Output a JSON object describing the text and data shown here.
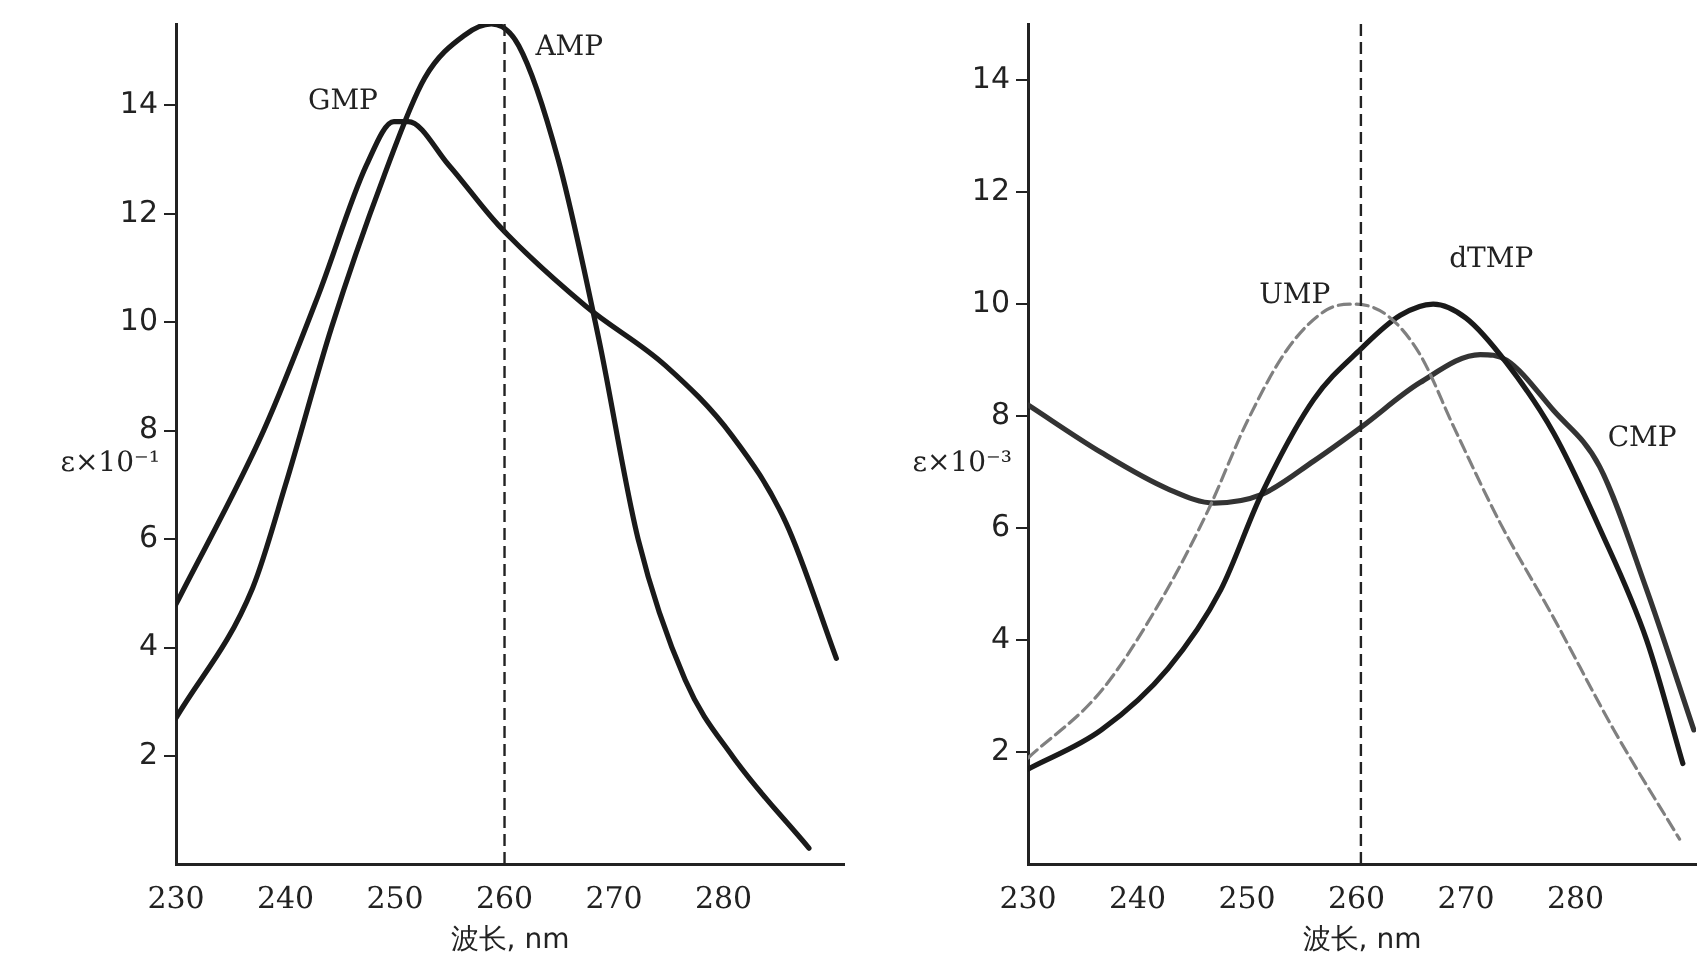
{
  "chart_data": [
    {
      "type": "line",
      "xlabel": "波长, nm",
      "ylabel": "ε×10⁻¹",
      "xlim": [
        230,
        291
      ],
      "xticks": [
        230,
        240,
        250,
        260,
        270,
        280
      ],
      "ylim": [
        0,
        15.5
      ],
      "yticks": [
        2,
        4,
        6,
        8,
        10,
        12,
        14
      ],
      "grid": false,
      "legend": false,
      "marker": "none",
      "ref_lines": [
        {
          "axis": "x",
          "value": 260,
          "line_style": "dashed"
        }
      ],
      "series": [
        {
          "name": "GMP",
          "color": "#1a1a1a",
          "x": [
            230,
            238,
            243,
            247.4,
            249.9,
            251.2,
            254.9,
            259.4,
            267.4,
            274.7,
            280.8,
            285.7,
            290.3
          ],
          "values": [
            4.8,
            8.0,
            10.5,
            12.9,
            13.7,
            13.7,
            12.9,
            11.8,
            10.3,
            9.2,
            7.9,
            6.3,
            3.8
          ]
        },
        {
          "name": "AMP",
          "color": "#1a1a1a",
          "x": [
            230,
            237,
            240,
            244.2,
            249,
            252.7,
            256.4,
            258.8,
            261.3,
            264.9,
            268.6,
            272.2,
            276.5,
            280.8,
            287.8
          ],
          "values": [
            2.7,
            5.1,
            7.0,
            9.9,
            12.7,
            14.5,
            15.3,
            15.5,
            15.1,
            13.0,
            9.7,
            6.0,
            3.4,
            2.0,
            0.3
          ]
        }
      ]
    },
    {
      "type": "line",
      "xlabel": "波长, nm",
      "ylabel": "ε×10⁻³",
      "xlim": [
        230,
        291
      ],
      "xticks": [
        230,
        240,
        250,
        260,
        270,
        280
      ],
      "ylim": [
        0,
        15
      ],
      "yticks": [
        2,
        4,
        6,
        8,
        10,
        12,
        14
      ],
      "grid": false,
      "legend": false,
      "marker": "none",
      "ref_lines": [
        {
          "axis": "x",
          "value": 260.4,
          "line_style": "dashed"
        }
      ],
      "series": [
        {
          "name": "UMP",
          "color": "#808080",
          "line_style": "dashed",
          "x": [
            230,
            236.7,
            242.1,
            246.4,
            250,
            253.7,
            257.3,
            259.8,
            262.8,
            265.8,
            268.9,
            273.1,
            278,
            283.5,
            289.5
          ],
          "values": [
            1.9,
            3.1,
            4.7,
            6.3,
            7.9,
            9.2,
            9.9,
            10.0,
            9.8,
            9.1,
            7.8,
            6.1,
            4.4,
            2.4,
            0.45
          ]
        },
        {
          "name": "dTMP",
          "color": "#1a1a1a",
          "x": [
            230,
            236.7,
            242.8,
            247.6,
            251.3,
            256.1,
            260.4,
            264,
            267,
            270,
            273.7,
            278,
            282.2,
            286.5,
            289.8
          ],
          "values": [
            1.7,
            2.4,
            3.5,
            4.9,
            6.6,
            8.3,
            9.2,
            9.8,
            10.0,
            9.75,
            8.95,
            7.7,
            6.0,
            4.0,
            1.8
          ]
        },
        {
          "name": "CMP",
          "color": "#333333",
          "x": [
            230,
            236.7,
            242.8,
            247,
            251.3,
            256.1,
            260.4,
            265.8,
            271.3,
            273.7,
            278,
            282.2,
            286.5,
            290.8
          ],
          "values": [
            8.2,
            7.35,
            6.7,
            6.45,
            6.6,
            7.2,
            7.8,
            8.6,
            9.1,
            9.0,
            8.1,
            7.1,
            4.9,
            2.4
          ]
        }
      ]
    }
  ]
}
